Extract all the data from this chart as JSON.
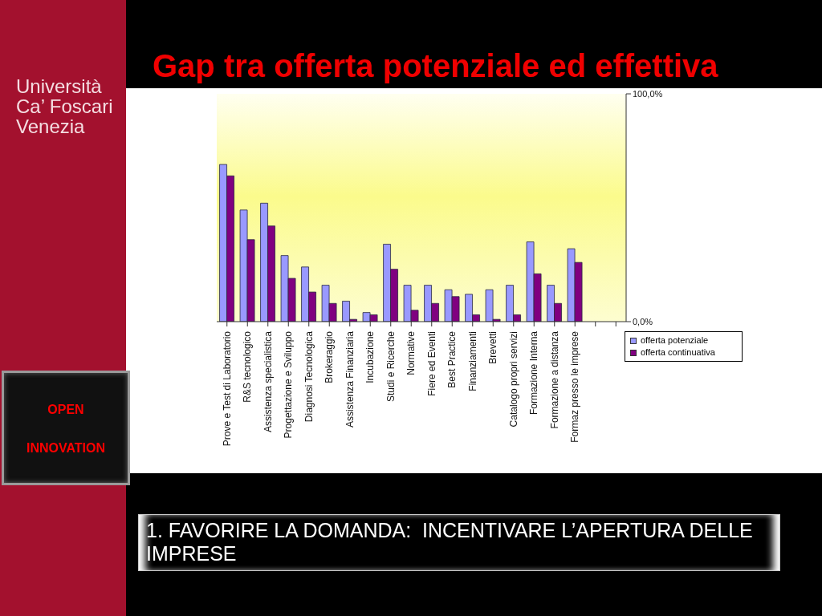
{
  "chart_data": {
    "type": "bar",
    "title": "Gap tra offerta potenziale ed effettiva",
    "categories": [
      "Prove e Test di Laboratorio",
      "R&S tecnologico",
      "Assistenza specialistica",
      "Progettazione e Sviluppo",
      "Diagnosi Tecnologica",
      "Brokeraggio",
      "Assistenza Finanziaria",
      "Incubazione",
      "Studi e Ricerche",
      "Normative",
      "Fiere ed Eventi",
      "Best Practice",
      "Finanziamenti",
      "Brevetti",
      "Catalogo propri servizi",
      "Formazione Interna",
      "Formazione a distanza",
      "Formaz presso le imprese",
      null,
      null
    ],
    "series": [
      {
        "name": "offerta potenziale",
        "color": "#9999ff",
        "values": [
          69,
          49,
          52,
          29,
          24,
          16,
          9,
          4,
          34,
          16,
          16,
          14,
          12,
          14,
          16,
          35,
          16,
          32,
          null,
          null
        ]
      },
      {
        "name": "offerta continuativa",
        "color": "#800080",
        "values": [
          64,
          36,
          42,
          19,
          13,
          8,
          1,
          3,
          23,
          5,
          8,
          11,
          3,
          1,
          3,
          21,
          8,
          26,
          null,
          null
        ]
      }
    ],
    "ylim": [
      0,
      100
    ],
    "yticks": [
      {
        "value": 0,
        "label": "0,0%"
      },
      {
        "value": 100,
        "label": "100,0%"
      }
    ],
    "legend": "bottom right",
    "annotations": [
      "Università Ca’ Foscari Venezia",
      "OPEN INNOVATION",
      "1. FAVORIRE LA DOMANDA:  INCENTIVARE L’APERTURA DELLE IMPRESE"
    ]
  }
}
